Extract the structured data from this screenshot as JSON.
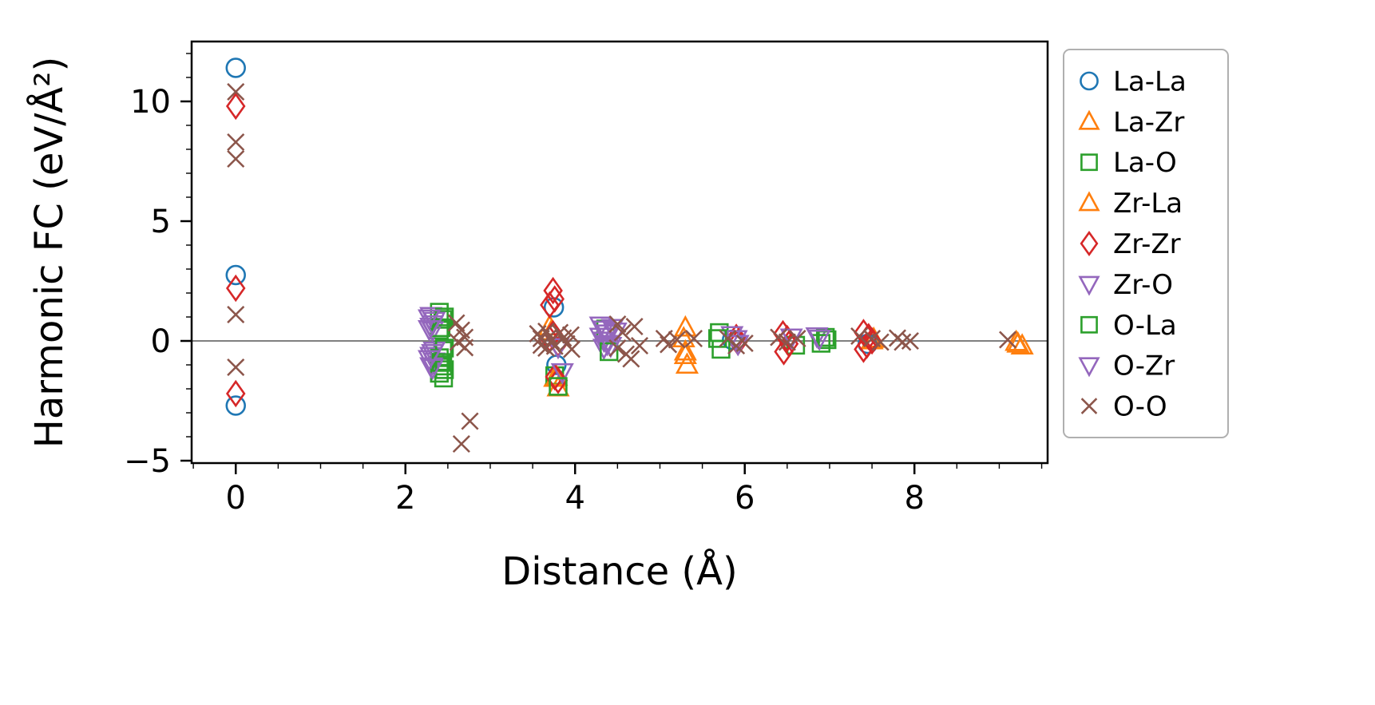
{
  "chart_data": {
    "type": "scatter",
    "title": "",
    "xlabel": "Distance (Å)",
    "ylabel": "Harmonic FC (eV/Å²)",
    "xlim": [
      -0.52,
      9.57
    ],
    "ylim": [
      -5.1,
      12.5
    ],
    "xticks": [
      {
        "v": 0,
        "label": "0"
      },
      {
        "v": 2,
        "label": "2"
      },
      {
        "v": 4,
        "label": "4"
      },
      {
        "v": 6,
        "label": "6"
      },
      {
        "v": 8,
        "label": "8"
      }
    ],
    "yticks": [
      {
        "v": -5,
        "label": "−5"
      },
      {
        "v": 0,
        "label": "0"
      },
      {
        "v": 5,
        "label": "5"
      },
      {
        "v": 10,
        "label": "10"
      }
    ],
    "x_minor_step": 0.5,
    "y_minor_step": 1,
    "grid": false,
    "zero_line": {
      "y": 0,
      "color": "#808080"
    },
    "legend_position": "right-outside",
    "series": [
      {
        "name": "La-La",
        "marker": "circle",
        "color": "#1f77b4",
        "points": [
          [
            0,
            11.4
          ],
          [
            0,
            2.75
          ],
          [
            0,
            -2.7
          ],
          [
            3.75,
            1.4
          ],
          [
            3.78,
            -1.0
          ],
          [
            5.85,
            0.05
          ],
          [
            7.45,
            -0.12
          ]
        ]
      },
      {
        "name": "La-Zr",
        "marker": "triangle-up",
        "color": "#ff7f0e",
        "points": [
          [
            3.7,
            0.6
          ],
          [
            3.76,
            -1.55
          ],
          [
            3.8,
            -1.95
          ],
          [
            5.3,
            0.55
          ],
          [
            5.3,
            -0.45
          ],
          [
            5.32,
            -1.0
          ],
          [
            7.5,
            0.02
          ],
          [
            9.2,
            -0.05
          ],
          [
            9.27,
            -0.2
          ]
        ]
      },
      {
        "name": "La-O",
        "marker": "square",
        "color": "#2ca02c",
        "points": [
          [
            2.4,
            1.2
          ],
          [
            2.44,
            0.9
          ],
          [
            2.4,
            0.45
          ],
          [
            2.44,
            -0.4
          ],
          [
            2.4,
            -0.7
          ],
          [
            2.44,
            -1.05
          ],
          [
            2.4,
            -1.35
          ],
          [
            2.45,
            -1.55
          ],
          [
            3.76,
            -1.45
          ],
          [
            4.36,
            0.5
          ],
          [
            5.7,
            0.35
          ],
          [
            6.6,
            -0.18
          ],
          [
            6.95,
            0.15
          ]
        ]
      },
      {
        "name": "Zr-La",
        "marker": "triangle-up",
        "color": "#ff7f0e",
        "points": [
          [
            3.72,
            0.4
          ],
          [
            3.78,
            -1.5
          ],
          [
            5.28,
            0.1
          ],
          [
            5.3,
            -0.6
          ],
          [
            7.52,
            0.08
          ],
          [
            9.22,
            -0.12
          ]
        ]
      },
      {
        "name": "Zr-Zr",
        "marker": "diamond",
        "color": "#d62728",
        "points": [
          [
            0,
            9.8
          ],
          [
            0,
            2.2
          ],
          [
            0,
            -2.2
          ],
          [
            3.74,
            2.1
          ],
          [
            3.76,
            1.75
          ],
          [
            3.7,
            1.5
          ],
          [
            3.74,
            0.3
          ],
          [
            3.7,
            0.08
          ],
          [
            3.8,
            -0.12
          ],
          [
            3.76,
            -1.5
          ],
          [
            3.8,
            -1.65
          ],
          [
            5.9,
            0.15
          ],
          [
            5.92,
            -0.05
          ],
          [
            6.45,
            0.3
          ],
          [
            6.5,
            0.1
          ],
          [
            6.52,
            -0.12
          ],
          [
            6.46,
            -0.45
          ],
          [
            7.4,
            0.35
          ],
          [
            7.46,
            0.18
          ],
          [
            7.5,
            0.0
          ],
          [
            7.44,
            -0.18
          ],
          [
            7.4,
            -0.35
          ]
        ]
      },
      {
        "name": "Zr-O",
        "marker": "triangle-down",
        "color": "#9467bd",
        "points": [
          [
            2.3,
            1.05
          ],
          [
            2.34,
            0.85
          ],
          [
            2.3,
            0.6
          ],
          [
            2.32,
            0.45
          ],
          [
            2.34,
            -0.4
          ],
          [
            2.3,
            -0.62
          ],
          [
            2.34,
            -0.85
          ],
          [
            2.3,
            -1.05
          ],
          [
            3.8,
            -0.25
          ],
          [
            3.85,
            -1.3
          ],
          [
            4.3,
            0.65
          ],
          [
            4.34,
            0.48
          ],
          [
            4.38,
            0.32
          ],
          [
            4.3,
            0.18
          ],
          [
            4.34,
            0.02
          ],
          [
            4.38,
            -0.12
          ],
          [
            4.34,
            -0.28
          ],
          [
            5.85,
            0.25
          ],
          [
            5.9,
            0.08
          ],
          [
            6.55,
            0.15
          ],
          [
            6.85,
            0.2
          ]
        ]
      },
      {
        "name": "O-La",
        "marker": "square",
        "color": "#2ca02c",
        "points": [
          [
            2.46,
            1.0
          ],
          [
            2.42,
            0.55
          ],
          [
            2.46,
            -0.3
          ],
          [
            2.42,
            -0.9
          ],
          [
            2.46,
            -1.2
          ],
          [
            3.8,
            -1.9
          ],
          [
            4.4,
            -0.45
          ],
          [
            5.72,
            -0.35
          ],
          [
            5.68,
            0.1
          ],
          [
            6.9,
            -0.1
          ],
          [
            6.97,
            0.05
          ]
        ]
      },
      {
        "name": "O-Zr",
        "marker": "triangle-down",
        "color": "#9467bd",
        "points": [
          [
            2.28,
            0.95
          ],
          [
            2.32,
            0.7
          ],
          [
            2.28,
            0.5
          ],
          [
            2.32,
            -0.5
          ],
          [
            2.28,
            -0.75
          ],
          [
            2.32,
            -1.12
          ],
          [
            4.44,
            0.55
          ],
          [
            4.48,
            0.4
          ],
          [
            4.42,
            -0.2
          ],
          [
            5.92,
            -0.12
          ],
          [
            6.88,
            0.1
          ]
        ]
      },
      {
        "name": "O-O",
        "marker": "x",
        "color": "#8c564b",
        "points": [
          [
            0,
            10.4
          ],
          [
            0,
            8.3
          ],
          [
            0,
            7.6
          ],
          [
            0,
            1.1
          ],
          [
            0,
            -1.1
          ],
          [
            2.6,
            0.75
          ],
          [
            2.66,
            0.45
          ],
          [
            2.7,
            0.15
          ],
          [
            2.62,
            -0.05
          ],
          [
            2.7,
            -0.28
          ],
          [
            2.66,
            -4.3
          ],
          [
            2.76,
            -3.35
          ],
          [
            3.56,
            0.3
          ],
          [
            3.6,
            0.1
          ],
          [
            3.6,
            -0.18
          ],
          [
            3.66,
            0.4
          ],
          [
            3.66,
            -0.3
          ],
          [
            3.7,
            0.18
          ],
          [
            3.72,
            0.0
          ],
          [
            3.76,
            -0.22
          ],
          [
            3.82,
            0.35
          ],
          [
            3.86,
            0.12
          ],
          [
            3.9,
            -0.12
          ],
          [
            3.95,
            0.25
          ],
          [
            3.96,
            -0.35
          ],
          [
            4.5,
            0.7
          ],
          [
            4.56,
            0.35
          ],
          [
            4.5,
            -0.3
          ],
          [
            4.6,
            -0.55
          ],
          [
            4.7,
            0.6
          ],
          [
            4.76,
            -0.2
          ],
          [
            4.66,
            -0.75
          ],
          [
            5.05,
            0.1
          ],
          [
            5.1,
            -0.15
          ],
          [
            5.2,
            0.05
          ],
          [
            5.4,
            0.1
          ],
          [
            5.8,
            0.1
          ],
          [
            5.9,
            -0.2
          ],
          [
            6.0,
            -0.1
          ],
          [
            6.4,
            0.15
          ],
          [
            6.5,
            -0.05
          ],
          [
            6.62,
            0.1
          ],
          [
            7.35,
            0.2
          ],
          [
            7.5,
            0.1
          ],
          [
            7.6,
            -0.05
          ],
          [
            7.8,
            0.12
          ],
          [
            7.86,
            -0.05
          ],
          [
            7.95,
            0.0
          ],
          [
            9.1,
            0.05
          ]
        ]
      }
    ]
  }
}
